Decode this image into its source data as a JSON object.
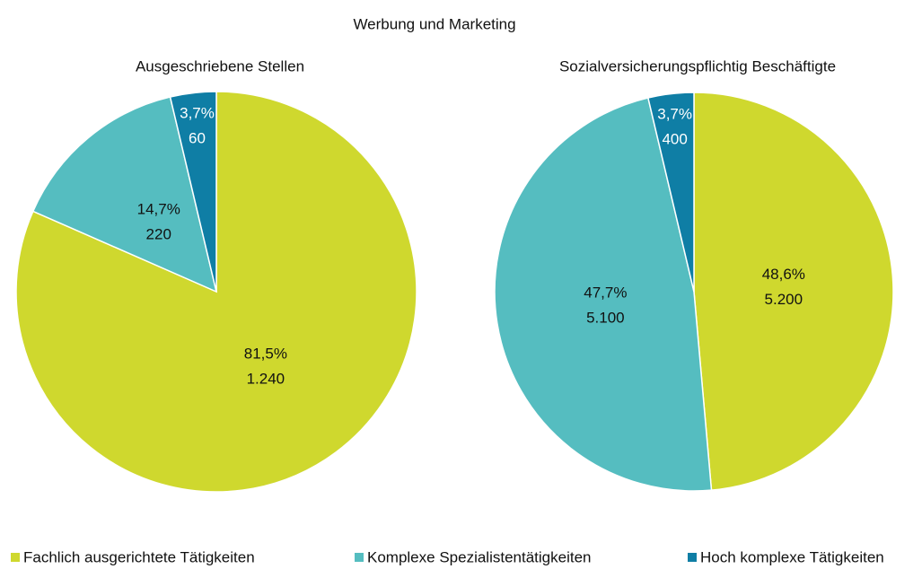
{
  "title": "Werbung und Marketing",
  "chart_data": [
    {
      "type": "pie",
      "title": "Ausgeschriebene Stellen",
      "categories": [
        "Fachlich ausgerichtete Tätigkeiten",
        "Komplexe Spezialistentätigkeiten",
        "Hoch komplexe Tätigkeiten"
      ],
      "colors": [
        "#cfd82e",
        "#55bdc0",
        "#0f7ea5"
      ],
      "values": [
        81.5,
        14.7,
        3.7
      ],
      "value_labels": [
        "81,5%",
        "14,7%",
        "3,7%"
      ],
      "counts": [
        1240,
        220,
        60
      ],
      "count_labels": [
        "1.240",
        "220",
        "60"
      ]
    },
    {
      "type": "pie",
      "title": "Sozialversicherungspflichtig Beschäftigte",
      "categories": [
        "Fachlich ausgerichtete Tätigkeiten",
        "Komplexe Spezialistentätigkeiten",
        "Hoch komplexe Tätigkeiten"
      ],
      "colors": [
        "#cfd82e",
        "#55bdc0",
        "#0f7ea5"
      ],
      "values": [
        48.6,
        47.7,
        3.7
      ],
      "value_labels": [
        "48,6%",
        "47,7%",
        "3,7%"
      ],
      "counts": [
        5200,
        5100,
        400
      ],
      "count_labels": [
        "5.200",
        "5.100",
        "400"
      ]
    }
  ]
}
